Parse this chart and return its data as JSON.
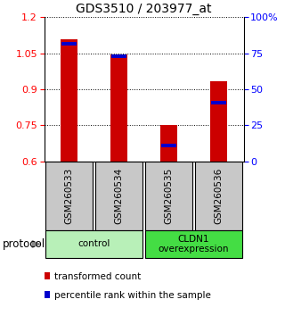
{
  "title": "GDS3510 / 203977_at",
  "samples": [
    "GSM260533",
    "GSM260534",
    "GSM260535",
    "GSM260536"
  ],
  "red_values": [
    1.11,
    1.045,
    0.75,
    0.935
  ],
  "blue_values": [
    1.09,
    1.038,
    0.665,
    0.845
  ],
  "ymin": 0.6,
  "ymax": 1.2,
  "yticks_left": [
    0.6,
    0.75,
    0.9,
    1.05,
    1.2
  ],
  "yticks_right_pct": [
    0,
    25,
    50,
    75,
    100
  ],
  "groups": [
    {
      "label": "control",
      "start": 0,
      "end": 2,
      "color": "#b8f0b8"
    },
    {
      "label": "CLDN1\noverexpression",
      "start": 2,
      "end": 4,
      "color": "#44dd44"
    }
  ],
  "legend_items": [
    {
      "color": "#cc0000",
      "label": "transformed count"
    },
    {
      "color": "#0000cc",
      "label": "percentile rank within the sample"
    }
  ],
  "bar_width": 0.35,
  "bar_color": "#cc0000",
  "blue_color": "#0000cc",
  "sample_box_color": "#c8c8c8",
  "title_fontsize": 10,
  "tick_fontsize": 8,
  "label_fontsize": 8
}
